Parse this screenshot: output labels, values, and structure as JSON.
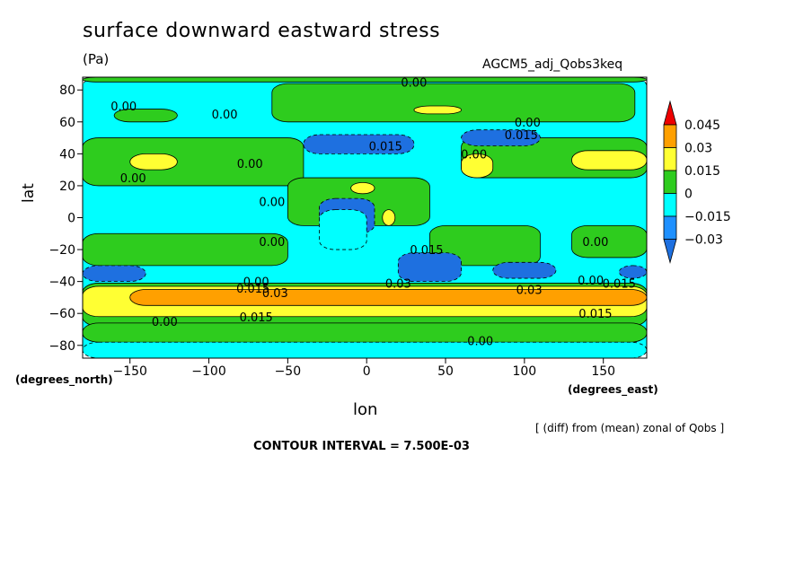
{
  "chart_data": {
    "type": "heatmap",
    "title": "surface downward eastward stress",
    "units": "(Pa)",
    "run_label": "AGCM5_adj_Qobs3keq",
    "xlabel": "lon",
    "ylabel": "lat",
    "x_unit_label": "(degrees_east)",
    "y_unit_label": "(degrees_north)",
    "note": "[ (diff) from (mean) zonal of Qobs ]",
    "contour_interval_text": "CONTOUR INTERVAL = 7.500E-03",
    "xlim": [
      -180,
      177.5
    ],
    "ylim": [
      -88,
      88
    ],
    "x_ticks": [
      -150,
      -100,
      -50,
      0,
      50,
      100,
      150
    ],
    "y_ticks": [
      -80,
      -60,
      -40,
      -20,
      0,
      20,
      40,
      60,
      80
    ],
    "x_tick_labels": [
      "−150",
      "−100",
      "−50",
      "0",
      "50",
      "100",
      "150"
    ],
    "y_tick_labels": [
      "−80",
      "−60",
      "−40",
      "−20",
      "0",
      "20",
      "40",
      "60",
      "80"
    ],
    "colorbar": {
      "levels": [
        -0.03,
        -0.015,
        0,
        0.015,
        0.03,
        0.045
      ],
      "labels": [
        "−0.03",
        "−0.015",
        "0",
        "0.015",
        "0.03",
        "0.045"
      ],
      "colors": [
        "#1e90ff",
        "#00ffff",
        "#2ecc1e",
        "#ffff33",
        "#ffa000",
        "#ee0000"
      ],
      "below_color": "#1e70e0"
    },
    "regions": [
      {
        "lon0": -180,
        "lon1": 177.5,
        "lat0": -88,
        "lat1": 88,
        "level": 1
      },
      {
        "lon0": -180,
        "lon1": 177.5,
        "lat0": -68,
        "lat1": -41,
        "level": 2
      },
      {
        "lon0": -180,
        "lon1": 177.5,
        "lat0": -62,
        "lat1": -43,
        "level": 3
      },
      {
        "lon0": -150,
        "lon1": 177.5,
        "lat0": -55,
        "lat1": -45,
        "level": 4
      },
      {
        "lon0": -180,
        "lon1": 177.5,
        "lat0": -78,
        "lat1": -66,
        "level": 2
      },
      {
        "lon0": -180,
        "lon1": -50,
        "lat0": -30,
        "lat1": -10,
        "level": 2
      },
      {
        "lon0": 40,
        "lon1": 110,
        "lat0": -30,
        "lat1": -5,
        "level": 2
      },
      {
        "lon0": 130,
        "lon1": 177.5,
        "lat0": -25,
        "lat1": -5,
        "level": 2
      },
      {
        "lon0": -180,
        "lon1": -40,
        "lat0": 20,
        "lat1": 50,
        "level": 2
      },
      {
        "lon0": 60,
        "lon1": 177.5,
        "lat0": 25,
        "lat1": 50,
        "level": 2
      },
      {
        "lon0": -50,
        "lon1": 40,
        "lat0": -5,
        "lat1": 25,
        "level": 2
      },
      {
        "lon0": -150,
        "lon1": -120,
        "lat0": 30,
        "lat1": 40,
        "level": 3
      },
      {
        "lon0": 130,
        "lon1": 177.5,
        "lat0": 30,
        "lat1": 42,
        "level": 3
      },
      {
        "lon0": 60,
        "lon1": 80,
        "lat0": 25,
        "lat1": 40,
        "level": 3
      },
      {
        "lon0": -10,
        "lon1": 5,
        "lat0": 15,
        "lat1": 22,
        "level": 3
      },
      {
        "lon0": 10,
        "lon1": 18,
        "lat0": -5,
        "lat1": 5,
        "level": 3
      },
      {
        "lon0": -60,
        "lon1": 170,
        "lat0": 60,
        "lat1": 84,
        "level": 2
      },
      {
        "lon0": -160,
        "lon1": -120,
        "lat0": 60,
        "lat1": 68,
        "level": 2
      },
      {
        "lon0": 30,
        "lon1": 60,
        "lat0": 65,
        "lat1": 70,
        "level": 3
      },
      {
        "lon0": -180,
        "lon1": 177.5,
        "lat0": 85,
        "lat1": 88,
        "level": 2
      },
      {
        "lon0": -30,
        "lon1": 5,
        "lat0": -10,
        "lat1": 12,
        "level": 0
      },
      {
        "lon0": 20,
        "lon1": 60,
        "lat0": -40,
        "lat1": -22,
        "level": 0
      },
      {
        "lon0": 80,
        "lon1": 120,
        "lat0": -38,
        "lat1": -28,
        "level": 0
      },
      {
        "lon0": -180,
        "lon1": -140,
        "lat0": -40,
        "lat1": -30,
        "level": 0
      },
      {
        "lon0": 160,
        "lon1": 177.5,
        "lat0": -38,
        "lat1": -30,
        "level": 0
      },
      {
        "lon0": -40,
        "lon1": 30,
        "lat0": 40,
        "lat1": 52,
        "level": 0
      },
      {
        "lon0": 60,
        "lon1": 110,
        "lat0": 45,
        "lat1": 55,
        "level": 0
      },
      {
        "lon0": -30,
        "lon1": 0,
        "lat0": -20,
        "lat1": 5,
        "level": 1
      },
      {
        "lon0": -180,
        "lon1": 177.5,
        "lat0": -88,
        "lat1": -78,
        "level": 1
      }
    ],
    "contour_labels": [
      {
        "lon": -154,
        "lat": 70,
        "text": "0.00"
      },
      {
        "lon": -90,
        "lat": 65,
        "text": "0.00"
      },
      {
        "lon": 30,
        "lat": 85,
        "text": "0.00"
      },
      {
        "lon": 102,
        "lat": 60,
        "text": "0.00"
      },
      {
        "lon": 98,
        "lat": 52,
        "text": "0.015"
      },
      {
        "lon": 12,
        "lat": 45,
        "text": "0.015"
      },
      {
        "lon": 68,
        "lat": 40,
        "text": "0.00"
      },
      {
        "lon": -74,
        "lat": 34,
        "text": "0.00"
      },
      {
        "lon": -148,
        "lat": 25,
        "text": "0.00"
      },
      {
        "lon": -60,
        "lat": 10,
        "text": "0.00"
      },
      {
        "lon": -60,
        "lat": -15,
        "text": "0.00"
      },
      {
        "lon": 145,
        "lat": -15,
        "text": "0.00"
      },
      {
        "lon": 38,
        "lat": -20,
        "text": "0.015"
      },
      {
        "lon": -70,
        "lat": -40,
        "text": "0.00"
      },
      {
        "lon": -72,
        "lat": -44,
        "text": "0.015"
      },
      {
        "lon": -58,
        "lat": -47,
        "text": "0.03"
      },
      {
        "lon": 20,
        "lat": -41,
        "text": "0.03"
      },
      {
        "lon": 103,
        "lat": -45,
        "text": "0.03"
      },
      {
        "lon": 142,
        "lat": -39,
        "text": "0.00"
      },
      {
        "lon": 160,
        "lat": -41,
        "text": "0.015"
      },
      {
        "lon": -70,
        "lat": -62,
        "text": "0.015"
      },
      {
        "lon": -128,
        "lat": -65,
        "text": "0.00"
      },
      {
        "lon": 145,
        "lat": -60,
        "text": "0.015"
      },
      {
        "lon": 72,
        "lat": -77,
        "text": "0.00"
      }
    ]
  }
}
